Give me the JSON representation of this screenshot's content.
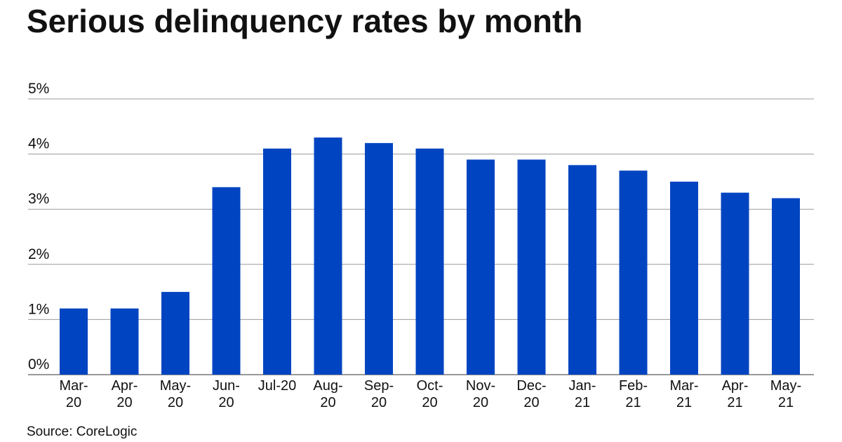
{
  "chart_data": {
    "type": "bar",
    "title": "Serious delinquency rates by month",
    "source": "Source: CoreLogic",
    "categories": [
      "Mar-20",
      "Apr-20",
      "May-20",
      "Jun-20",
      "Jul-20",
      "Aug-20",
      "Sep-20",
      "Oct-20",
      "Nov-20",
      "Dec-20",
      "Jan-21",
      "Feb-21",
      "Mar-21",
      "Apr-21",
      "May-21"
    ],
    "values": [
      1.2,
      1.2,
      1.5,
      3.4,
      4.1,
      4.3,
      4.2,
      4.1,
      3.9,
      3.9,
      3.8,
      3.7,
      3.5,
      3.3,
      3.2
    ],
    "color": "#0044c1",
    "ylim": [
      0,
      5
    ],
    "yticks": [
      {
        "value": 0,
        "label": "0%"
      },
      {
        "value": 1,
        "label": "1%"
      },
      {
        "value": 2,
        "label": "2%"
      },
      {
        "value": 3,
        "label": "3%"
      },
      {
        "value": 4,
        "label": "4%"
      },
      {
        "value": 5,
        "label": "5%"
      }
    ],
    "grid": true
  }
}
